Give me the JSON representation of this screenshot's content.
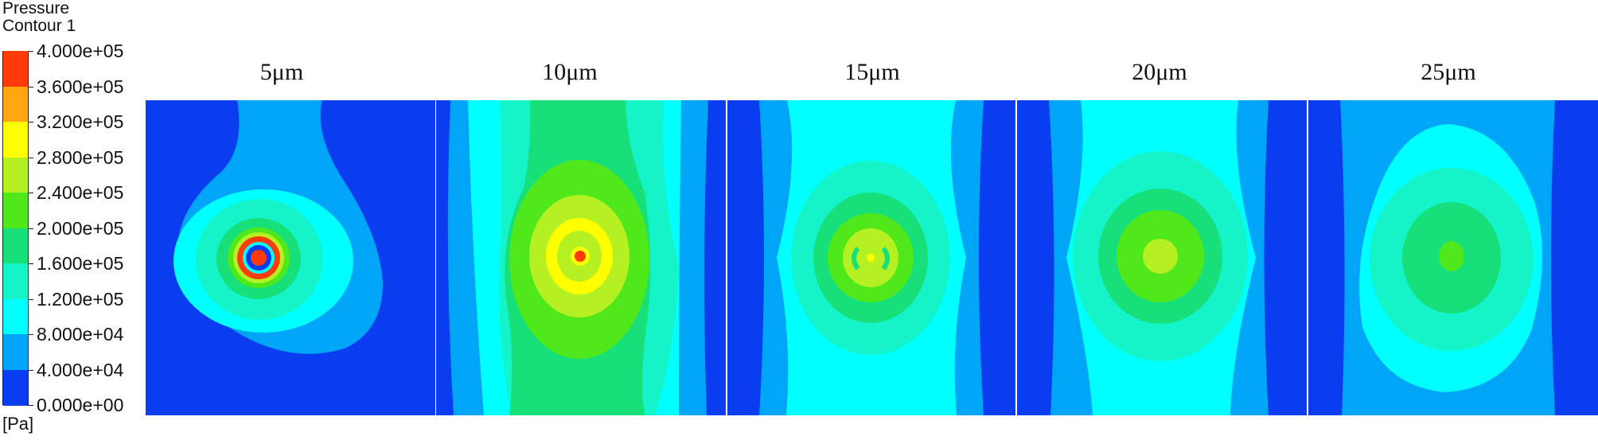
{
  "legend": {
    "title_line1": "Pressure",
    "title_line2": "Contour 1",
    "unit": "[Pa]",
    "levels": [
      "4.000e+05",
      "3.600e+05",
      "3.200e+05",
      "2.800e+05",
      "2.400e+05",
      "2.000e+05",
      "1.600e+05",
      "1.200e+05",
      "8.000e+04",
      "4.000e+04",
      "0.000e+00"
    ],
    "colors": [
      "#FF3B0A",
      "#FFA510",
      "#FFFF00",
      "#B5F023",
      "#50E81A",
      "#17E07A",
      "#14F4C8",
      "#00FFFF",
      "#00A5F8",
      "#0A3CF0"
    ]
  },
  "chart_data": {
    "type": "heatmap",
    "title": "",
    "colorbar": {
      "title": "Pressure Contour 1",
      "unit": "[Pa]",
      "min": 0,
      "max": 400000,
      "step": 40000
    },
    "panels": [
      {
        "label": "5μm",
        "peak_band": ">4.000e+05",
        "center_band": "0–4.000e+04"
      },
      {
        "label": "10μm",
        "peak_band": ">4.000e+05",
        "center_band": "3.200e+05–3.600e+05"
      },
      {
        "label": "15μm",
        "peak_band": "3.200e+05–3.600e+05",
        "center_band": "2.400e+05–2.800e+05"
      },
      {
        "label": "20μm",
        "peak_band": "2.400e+05–2.800e+05",
        "center_band": "2.400e+05–2.800e+05"
      },
      {
        "label": "25μm",
        "peak_band": "2.000e+05–2.400e+05",
        "center_band": "2.000e+05–2.400e+05"
      }
    ]
  }
}
